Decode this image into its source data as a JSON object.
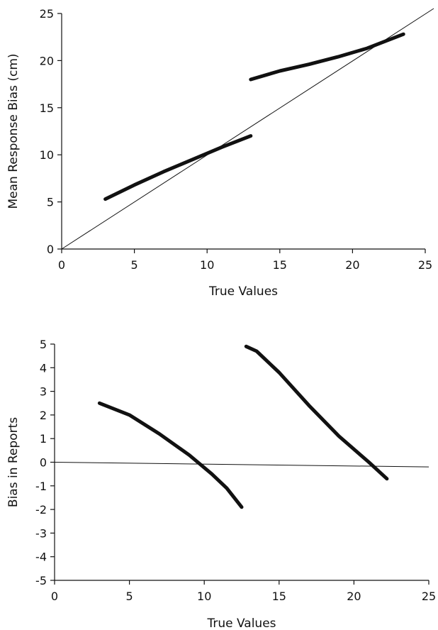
{
  "chart_data": [
    {
      "type": "line",
      "title": "",
      "xlabel": "True Values",
      "ylabel": "Mean Response Bias (cm)",
      "xlim": [
        0,
        25
      ],
      "ylim": [
        0,
        25
      ],
      "xticks": [
        "0",
        "5",
        "10",
        "15",
        "20",
        "25"
      ],
      "yticks": [
        "0",
        "5",
        "10",
        "15",
        "20",
        "25"
      ],
      "reference_line": {
        "type": "identity",
        "x": [
          0,
          25
        ],
        "y": [
          0,
          25
        ]
      },
      "series": [
        {
          "x": [
            3,
            5,
            7,
            9,
            11,
            13
          ],
          "y": [
            5.3,
            6.8,
            8.2,
            9.5,
            10.8,
            12.0
          ]
        },
        {
          "x": [
            13,
            15,
            17,
            19,
            21,
            23.5
          ],
          "y": [
            18.0,
            18.9,
            19.6,
            20.4,
            21.3,
            22.8
          ]
        }
      ],
      "grid": false,
      "legend": "none"
    },
    {
      "type": "line",
      "title": "",
      "xlabel": "True Values",
      "ylabel": "Bias in Reports",
      "xlim": [
        0,
        25
      ],
      "ylim": [
        -5,
        5
      ],
      "xticks": [
        "0",
        "5",
        "10",
        "15",
        "20",
        "25"
      ],
      "yticks": [
        "5",
        "4",
        "3",
        "2",
        "1",
        "0",
        "-1",
        "-2",
        "-3",
        "-4",
        "-5"
      ],
      "reference_line": {
        "type": "horizontal",
        "x": [
          0,
          25
        ],
        "y": [
          0,
          -0.2
        ]
      },
      "series": [
        {
          "x": [
            3,
            5,
            7,
            9,
            10.5,
            11.5,
            12.5
          ],
          "y": [
            2.5,
            2.0,
            1.2,
            0.3,
            -0.5,
            -1.1,
            -1.9
          ]
        },
        {
          "x": [
            12.8,
            13.5,
            15,
            17,
            19,
            21,
            22.2
          ],
          "y": [
            4.9,
            4.7,
            3.8,
            2.4,
            1.1,
            0.0,
            -0.7
          ]
        }
      ],
      "grid": false,
      "legend": "none"
    }
  ]
}
